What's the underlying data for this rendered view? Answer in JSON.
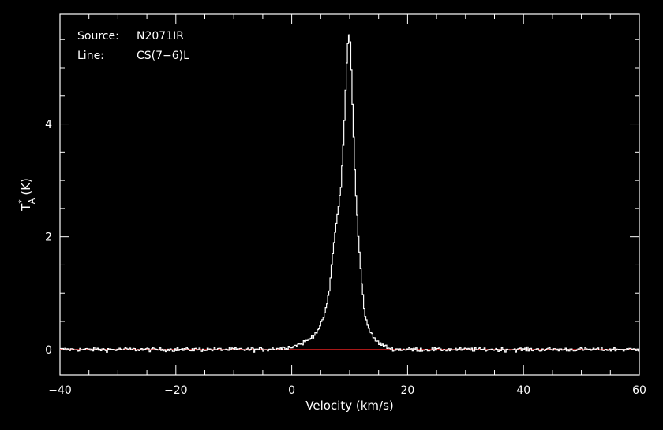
{
  "colors": {
    "background": "#000000",
    "axes": "#ffffff",
    "spectrum": "#ffffff",
    "baseline": "#e02020"
  },
  "chart_data": {
    "type": "line",
    "title": "",
    "xlabel": "Velocity (km/s)",
    "ylabel": "T",
    "ylabel_sub": "A",
    "ylabel_sup": "*",
    "ylabel_unit": "(K)",
    "xlim": [
      -40,
      60
    ],
    "ylim": [
      -0.45,
      5.95
    ],
    "grid": false,
    "legend": "none",
    "x_ticks": [
      {
        "value": -40,
        "label": "−40"
      },
      {
        "value": -20,
        "label": "−20"
      },
      {
        "value": 0,
        "label": "0"
      },
      {
        "value": 20,
        "label": "20"
      },
      {
        "value": 40,
        "label": "40"
      },
      {
        "value": 60,
        "label": "60"
      }
    ],
    "y_ticks": [
      {
        "value": 0,
        "label": "0"
      },
      {
        "value": 2,
        "label": "2"
      },
      {
        "value": 4,
        "label": "4"
      }
    ],
    "x_minor_step": 5,
    "y_minor_step": 0.5,
    "annotations": [
      {
        "key": "Source:",
        "value": "N2071IR"
      },
      {
        "key": "Line:",
        "value": "CS(7−6)L"
      }
    ],
    "baseline": {
      "x": [
        -40,
        60
      ],
      "y": [
        0,
        0
      ]
    },
    "series": [
      {
        "name": "",
        "style": "step",
        "x": [
          -40,
          -35,
          -30,
          -25,
          -20,
          -15,
          -10,
          -5,
          -2,
          0,
          1,
          2,
          3,
          4,
          5,
          6,
          6.5,
          7,
          7.5,
          8,
          8.5,
          9,
          9.3,
          9.6,
          9.8,
          10,
          10.2,
          10.4,
          10.7,
          11,
          11.5,
          12,
          12.5,
          13,
          14,
          15,
          16,
          17,
          18,
          20,
          25,
          30,
          35,
          40,
          45,
          50,
          55,
          60
        ],
        "y": [
          0,
          0,
          0,
          0,
          0,
          0,
          0,
          0,
          0.02,
          0.05,
          0.08,
          0.12,
          0.18,
          0.28,
          0.42,
          0.75,
          1.05,
          1.6,
          2.1,
          2.45,
          2.9,
          3.8,
          4.6,
          5.3,
          5.57,
          5.6,
          5.3,
          4.6,
          3.8,
          2.9,
          2.0,
          1.3,
          0.75,
          0.45,
          0.22,
          0.12,
          0.06,
          0.02,
          0,
          0,
          0,
          0,
          0,
          0,
          0,
          0,
          0,
          0
        ]
      }
    ],
    "noise_rms": 0.035
  }
}
